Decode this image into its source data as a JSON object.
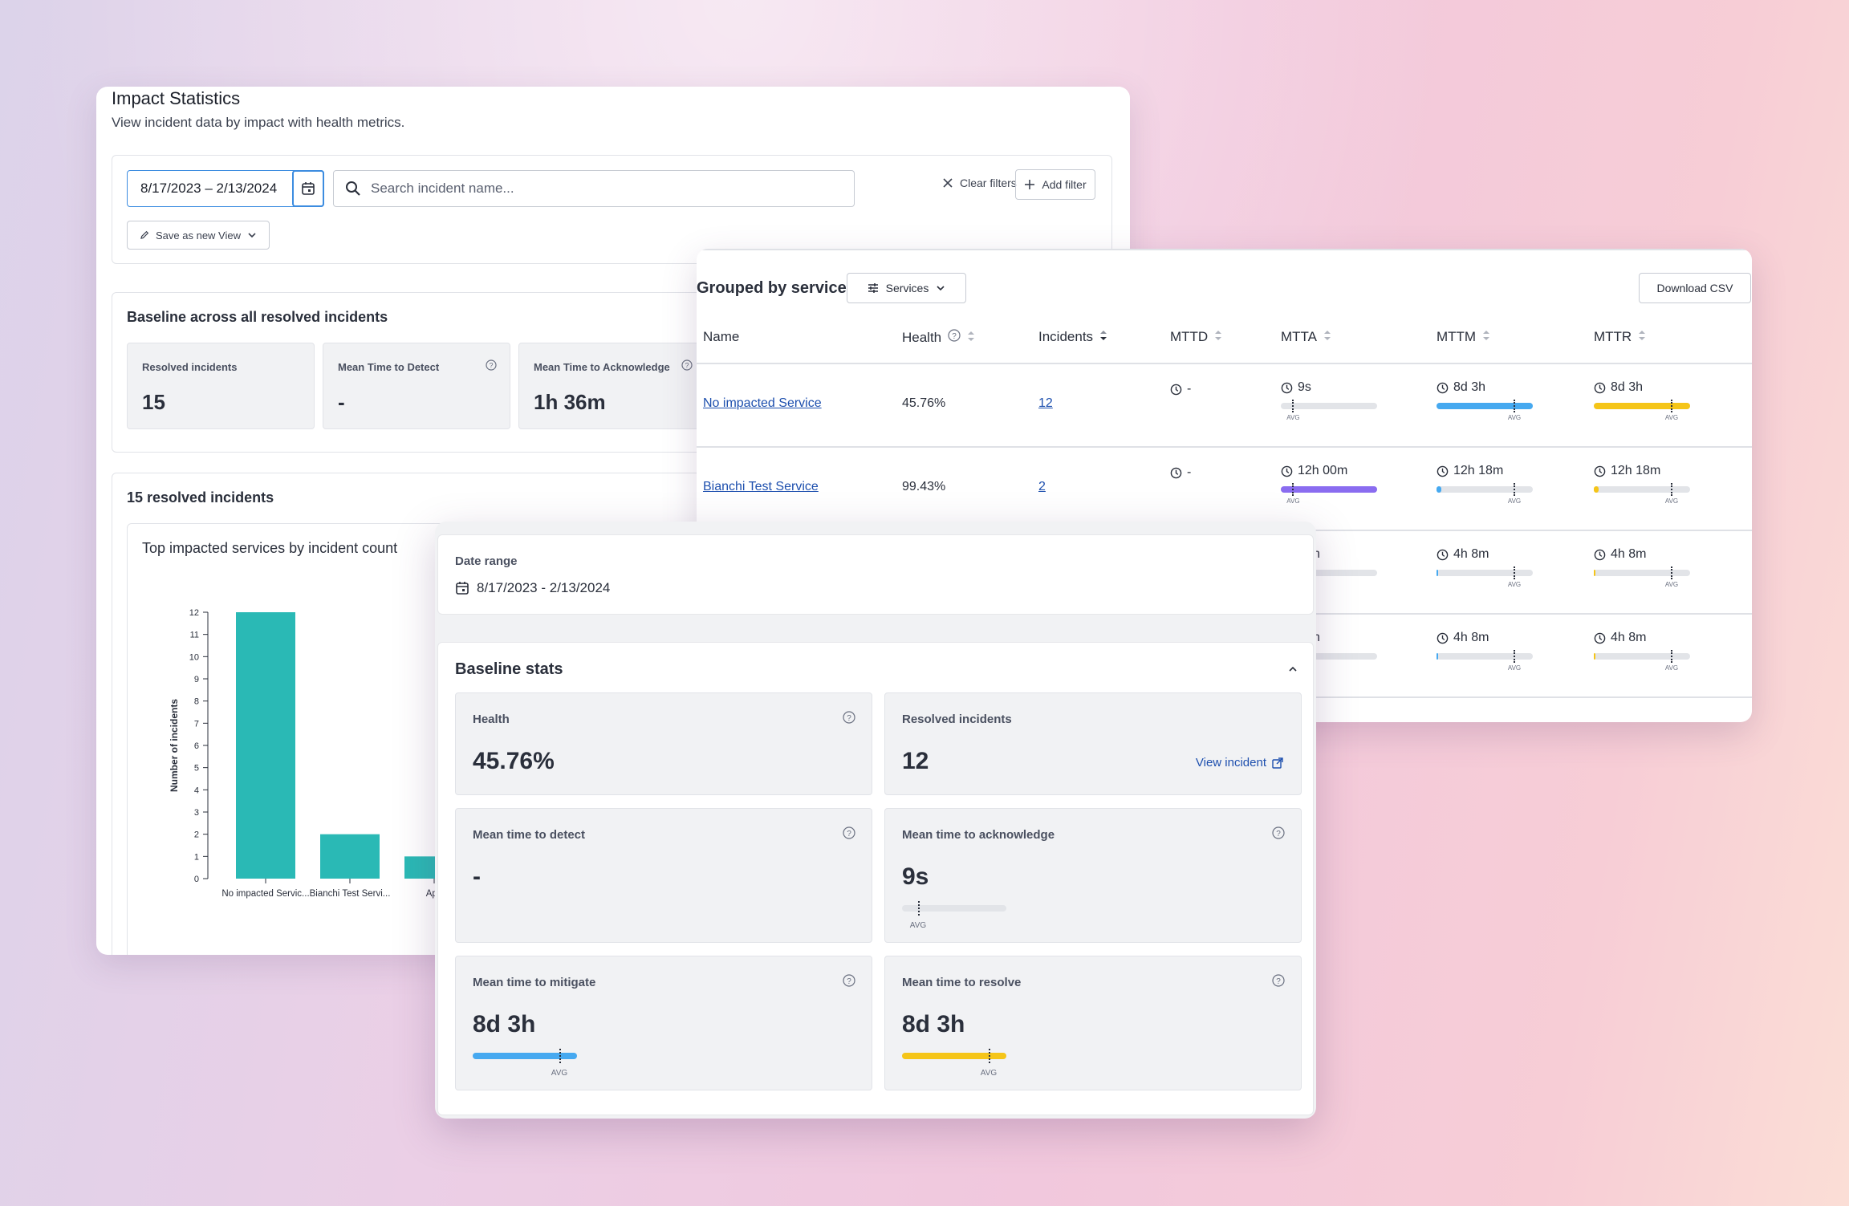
{
  "impact": {
    "title": "Impact Statistics",
    "subtitle": "View incident data by impact with health metrics.",
    "date_range": "8/17/2023  –  2/13/2024",
    "search_placeholder": "Search incident name...",
    "clear_filters": "Clear filters",
    "add_filter": "Add filter",
    "save_view": "Save as new View",
    "baseline_heading": "Baseline across all resolved incidents",
    "baseline_cards": [
      {
        "label": "Resolved incidents",
        "value": "15"
      },
      {
        "label": "Mean Time to Detect",
        "value": "-"
      },
      {
        "label": "Mean Time to Acknowledge",
        "value": "1h 36m"
      }
    ],
    "resolved_heading": "15 resolved incidents"
  },
  "chart_data": {
    "type": "bar",
    "title": "Top impacted services by incident count",
    "ylabel": "Number of incidents",
    "xlabel": "",
    "categories": [
      "No impacted Servic...",
      "Bianchi Test Servi...",
      "Apo"
    ],
    "values": [
      12,
      2,
      1
    ],
    "ylim": [
      0,
      12
    ],
    "yticks": [
      0,
      1,
      2,
      3,
      4,
      5,
      6,
      7,
      8,
      9,
      10,
      11,
      12
    ],
    "color": "#2ab9b5"
  },
  "grouped": {
    "title": "Grouped by service",
    "services_button": "Services",
    "download_csv": "Download CSV",
    "columns": [
      "Name",
      "Health",
      "Incidents",
      "MTTD",
      "MTTA",
      "MTTM",
      "MTTR"
    ],
    "avg_label": "AVG",
    "rows": [
      {
        "name": "No impacted Service",
        "health": "45.76%",
        "incidents": "12",
        "mttd": "-",
        "mtta": "9s",
        "mttm": "8d 3h",
        "mttr": "8d 3h"
      },
      {
        "name": "Bianchi Test Service",
        "health": "99.43%",
        "incidents": "2",
        "mttd": "-",
        "mtta": "12h 00m",
        "mttm": "12h 18m",
        "mttr": "12h 18m"
      },
      {
        "name": "",
        "health": "",
        "incidents": "",
        "mttd": "",
        "mtta": "h",
        "mttm": "4h 8m",
        "mttr": "4h 8m"
      },
      {
        "name": "",
        "health": "",
        "incidents": "",
        "mttd": "",
        "mtta": "h",
        "mttm": "4h 8m",
        "mttr": "4h 8m"
      }
    ],
    "colors": {
      "mtta": "#8a6cf0",
      "mttm": "#46a9f0",
      "mttr": "#f5c518"
    }
  },
  "detail": {
    "date_label": "Date range",
    "date_value": "8/17/2023 - 2/13/2024",
    "baseline_title": "Baseline stats",
    "avg_label": "AVG",
    "cards": {
      "health": {
        "label": "Health",
        "value": "45.76%"
      },
      "resolved": {
        "label": "Resolved incidents",
        "value": "12",
        "link": "View incident"
      },
      "mttd": {
        "label": "Mean time to detect",
        "value": "-"
      },
      "mtta": {
        "label": "Mean time to acknowledge",
        "value": "9s"
      },
      "mttm": {
        "label": "Mean time to mitigate",
        "value": "8d 3h"
      },
      "mttr": {
        "label": "Mean time to resolve",
        "value": "8d 3h"
      }
    }
  }
}
